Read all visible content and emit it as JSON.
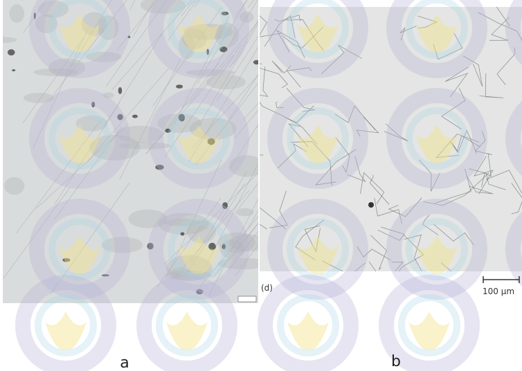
{
  "panels": [
    {
      "label": "a"
    },
    {
      "label": "b",
      "inset_label": "(d)",
      "scale_bar": "100 µm"
    }
  ]
}
